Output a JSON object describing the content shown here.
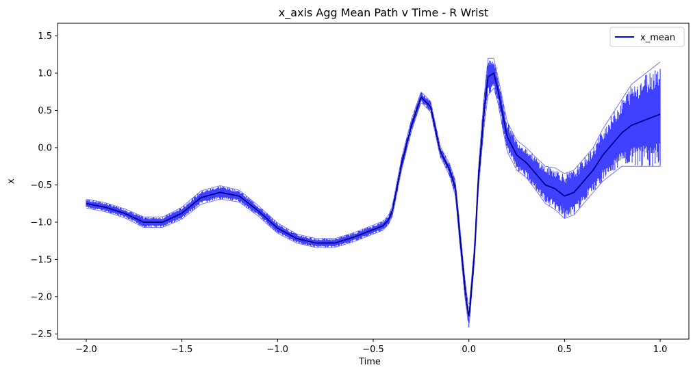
{
  "chart_data": {
    "type": "line",
    "title": "x_axis Agg Mean Path v Time - R Wrist",
    "xlabel": "Time",
    "ylabel": "x",
    "xlim": [
      -2.15,
      1.15
    ],
    "ylim": [
      -2.57,
      1.67
    ],
    "xticks": [
      -2.0,
      -1.5,
      -1.0,
      -0.5,
      0.0,
      0.5,
      1.0
    ],
    "xtick_labels": [
      "−2.0",
      "−1.5",
      "−1.0",
      "−0.5",
      "0.0",
      "0.5",
      "1.0"
    ],
    "yticks": [
      1.5,
      1.0,
      0.5,
      0.0,
      -0.5,
      -1.0,
      -1.5,
      -2.0,
      -2.5
    ],
    "ytick_labels": [
      "1.5",
      "1.0",
      "0.5",
      "0.0",
      "−0.5",
      "−1.0",
      "−1.5",
      "−2.0",
      "−2.5"
    ],
    "grid": false,
    "legend_position": "top-right",
    "colors": {
      "line": "#0000ff",
      "band": "#0000ff",
      "mean": "#00008b"
    },
    "series": [
      {
        "name": "x_mean",
        "x": [
          -2.0,
          -1.9,
          -1.8,
          -1.7,
          -1.6,
          -1.5,
          -1.4,
          -1.3,
          -1.2,
          -1.1,
          -1.0,
          -0.9,
          -0.8,
          -0.7,
          -0.6,
          -0.5,
          -0.45,
          -0.42,
          -0.4,
          -0.35,
          -0.3,
          -0.25,
          -0.2,
          -0.15,
          -0.1,
          -0.07,
          -0.05,
          -0.02,
          0.0,
          0.03,
          0.05,
          0.08,
          0.1,
          0.13,
          0.15,
          0.2,
          0.25,
          0.3,
          0.35,
          0.4,
          0.45,
          0.5,
          0.55,
          0.6,
          0.65,
          0.7,
          0.75,
          0.8,
          0.85,
          0.9,
          0.95,
          1.0
        ],
        "values": [
          -0.75,
          -0.8,
          -0.88,
          -1.0,
          -1.0,
          -0.88,
          -0.67,
          -0.6,
          -0.65,
          -0.85,
          -1.08,
          -1.22,
          -1.28,
          -1.28,
          -1.2,
          -1.1,
          -1.05,
          -0.97,
          -0.85,
          -0.2,
          0.3,
          0.68,
          0.55,
          -0.05,
          -0.3,
          -0.55,
          -1.1,
          -1.9,
          -2.3,
          -1.4,
          -0.4,
          0.5,
          0.95,
          1.0,
          0.8,
          0.15,
          -0.1,
          -0.2,
          -0.35,
          -0.5,
          -0.55,
          -0.65,
          -0.6,
          -0.45,
          -0.3,
          -0.1,
          0.05,
          0.2,
          0.3,
          0.35,
          0.4,
          0.45
        ],
        "spread": [
          0.06,
          0.06,
          0.06,
          0.07,
          0.07,
          0.08,
          0.09,
          0.09,
          0.08,
          0.07,
          0.07,
          0.06,
          0.06,
          0.06,
          0.06,
          0.06,
          0.06,
          0.06,
          0.07,
          0.08,
          0.08,
          0.07,
          0.07,
          0.07,
          0.08,
          0.1,
          0.12,
          0.12,
          0.12,
          0.12,
          0.14,
          0.2,
          0.25,
          0.2,
          0.18,
          0.2,
          0.2,
          0.2,
          0.22,
          0.25,
          0.28,
          0.3,
          0.3,
          0.3,
          0.3,
          0.35,
          0.4,
          0.45,
          0.55,
          0.6,
          0.65,
          0.7
        ]
      }
    ]
  }
}
